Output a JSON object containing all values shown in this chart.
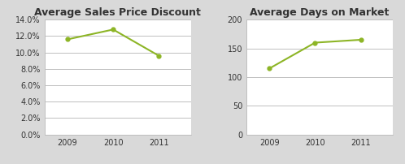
{
  "chart1": {
    "title": "Average Sales Price Discount",
    "years": [
      2009,
      2010,
      2011
    ],
    "values": [
      0.116,
      0.128,
      0.096
    ],
    "ylim": [
      0.0,
      0.14
    ],
    "yticks": [
      0.0,
      0.02,
      0.04,
      0.06,
      0.08,
      0.1,
      0.12,
      0.14
    ]
  },
  "chart2": {
    "title": "Average Days on Market",
    "years": [
      2009,
      2010,
      2011
    ],
    "values": [
      115,
      160,
      165
    ],
    "ylim": [
      0,
      200
    ],
    "yticks": [
      0,
      50,
      100,
      150,
      200
    ]
  },
  "line_color": "#8DB526",
  "marker": "o",
  "marker_size": 3.5,
  "bg_color": "#D9D9D9",
  "plot_bg_color": "#FFFFFF",
  "title_fontsize": 9,
  "tick_fontsize": 7,
  "grid_color": "#BFBFBF",
  "spine_color": "#BFBFBF",
  "gap_color": "#D9D9D9"
}
